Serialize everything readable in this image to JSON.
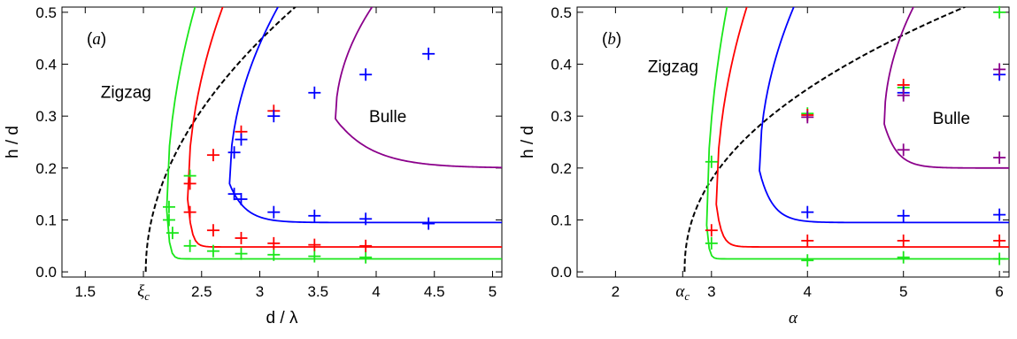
{
  "chart_data": [
    {
      "type": "line",
      "panel_label": "(a)",
      "xlabel": "d / λ",
      "ylabel": "h / d",
      "xlim": [
        1.3,
        5.08
      ],
      "ylim": [
        -0.01,
        0.51
      ],
      "xticks": [
        {
          "value": 1.5,
          "label": "1.5"
        },
        {
          "value": 2.0,
          "label": "ξc",
          "special": true
        },
        {
          "value": 2.5,
          "label": "2.5"
        },
        {
          "value": 3.0,
          "label": "3"
        },
        {
          "value": 3.5,
          "label": "3.5"
        },
        {
          "value": 4.0,
          "label": "4"
        },
        {
          "value": 4.5,
          "label": "4.5"
        },
        {
          "value": 5.0,
          "label": "5"
        }
      ],
      "yticks": [
        0.0,
        0.1,
        0.2,
        0.3,
        0.4,
        0.5
      ],
      "ytick_labels": [
        "0.0",
        "0.1",
        "0.2",
        "0.3",
        "0.4",
        "0.5"
      ],
      "annotations": [
        {
          "text": "Zigzag",
          "x": 1.85,
          "y": 0.335
        },
        {
          "text": "Bulle",
          "x": 4.1,
          "y": 0.288
        }
      ],
      "series": [
        {
          "color": "#000000",
          "dashed": true,
          "style": "boundary",
          "x0": 2.02,
          "A": 0.45,
          "n": 0.5,
          "xmax": 5.08
        },
        {
          "color": "#19e619",
          "style": "loop",
          "x0": 2.2,
          "yc": 0.12,
          "outer_k": 0.4,
          "inner_h": 0.025,
          "inner_k": 0.02,
          "xmax": 5.08
        },
        {
          "color": "#ff0000",
          "style": "loop",
          "x0": 2.38,
          "yc": 0.14,
          "outer_k": 0.55,
          "inner_h": 0.048,
          "inner_k": 0.03,
          "xmax": 5.08
        },
        {
          "color": "#0000ff",
          "style": "loop",
          "x0": 2.74,
          "yc": 0.17,
          "outer_k": 0.9,
          "inner_h": 0.095,
          "inner_k": 0.12,
          "xmax": 5.08
        },
        {
          "color": "#8b008b",
          "style": "loop",
          "x0": 3.65,
          "yc": 0.295,
          "outer_k": 1.7,
          "inner_h": 0.2,
          "inner_k": 0.28,
          "xmax": 5.08
        },
        {
          "color": "#19e619",
          "style": "points",
          "points": [
            [
              2.22,
              0.1
            ],
            [
              2.22,
              0.125
            ],
            [
              2.25,
              0.075
            ],
            [
              2.4,
              0.05
            ],
            [
              2.4,
              0.185
            ],
            [
              2.6,
              0.04
            ],
            [
              2.84,
              0.035
            ],
            [
              3.12,
              0.033
            ],
            [
              3.47,
              0.03
            ],
            [
              3.91,
              0.028
            ]
          ]
        },
        {
          "color": "#ff0000",
          "style": "points",
          "points": [
            [
              2.4,
              0.17
            ],
            [
              2.4,
              0.115
            ],
            [
              2.6,
              0.08
            ],
            [
              2.6,
              0.225
            ],
            [
              2.84,
              0.065
            ],
            [
              2.84,
              0.27
            ],
            [
              3.12,
              0.055
            ],
            [
              3.12,
              0.31
            ],
            [
              3.47,
              0.052
            ],
            [
              3.91,
              0.05
            ]
          ]
        },
        {
          "color": "#0000ff",
          "style": "points",
          "points": [
            [
              2.78,
              0.15
            ],
            [
              2.78,
              0.23
            ],
            [
              2.84,
              0.14
            ],
            [
              2.84,
              0.255
            ],
            [
              3.12,
              0.115
            ],
            [
              3.12,
              0.3
            ],
            [
              3.47,
              0.108
            ],
            [
              3.47,
              0.345
            ],
            [
              3.91,
              0.102
            ],
            [
              3.91,
              0.38
            ],
            [
              4.45,
              0.093
            ],
            [
              4.45,
              0.42
            ]
          ]
        }
      ]
    },
    {
      "type": "line",
      "panel_label": "(b)",
      "xlabel": "α",
      "ylabel": "h / d",
      "xlim": [
        1.6,
        6.1
      ],
      "ylim": [
        -0.01,
        0.51
      ],
      "xticks": [
        {
          "value": 2,
          "label": "2"
        },
        {
          "value": 2.7,
          "label": "αc",
          "special": true
        },
        {
          "value": 3,
          "label": "3"
        },
        {
          "value": 4,
          "label": "4"
        },
        {
          "value": 5,
          "label": "5"
        },
        {
          "value": 6,
          "label": "6"
        }
      ],
      "yticks": [
        0.0,
        0.1,
        0.2,
        0.3,
        0.4,
        0.5
      ],
      "ytick_labels": [
        "0.0",
        "0.1",
        "0.2",
        "0.3",
        "0.4",
        "0.5"
      ],
      "annotations": [
        {
          "text": "Zigzag",
          "x": 2.6,
          "y": 0.385
        },
        {
          "text": "Bulle",
          "x": 5.5,
          "y": 0.285
        }
      ],
      "series": [
        {
          "color": "#000000",
          "dashed": true,
          "style": "boundary",
          "x0": 2.72,
          "A": 0.315,
          "n": 0.45,
          "xmax": 6.1
        },
        {
          "color": "#19e619",
          "style": "loop",
          "x0": 2.95,
          "yc": 0.09,
          "outer_k": 0.3,
          "inner_h": 0.025,
          "inner_k": 0.02,
          "xmax": 6.1
        },
        {
          "color": "#ff0000",
          "style": "loop",
          "x0": 3.05,
          "yc": 0.13,
          "outer_k": 0.55,
          "inner_h": 0.048,
          "inner_k": 0.05,
          "xmax": 6.1
        },
        {
          "color": "#0000ff",
          "style": "loop",
          "x0": 3.5,
          "yc": 0.195,
          "outer_k": 0.9,
          "inner_h": 0.095,
          "inner_k": 0.12,
          "xmax": 6.1
        },
        {
          "color": "#8b008b",
          "style": "loop",
          "x0": 4.8,
          "yc": 0.285,
          "outer_k": 1.5,
          "inner_h": 0.2,
          "inner_k": 0.12,
          "xmax": 6.1
        },
        {
          "color": "#19e619",
          "style": "points",
          "points": [
            [
              3,
              0.212
            ],
            [
              3,
              0.055
            ],
            [
              4,
              0.305
            ],
            [
              4,
              0.022
            ],
            [
              5,
              0.355
            ],
            [
              5,
              0.028
            ],
            [
              6,
              0.5
            ],
            [
              6,
              0.025
            ]
          ]
        },
        {
          "color": "#ff0000",
          "style": "points",
          "points": [
            [
              3,
              0.08
            ],
            [
              4,
              0.302
            ],
            [
              4,
              0.06
            ],
            [
              5,
              0.36
            ],
            [
              5,
              0.06
            ],
            [
              6,
              0.06
            ]
          ]
        },
        {
          "color": "#0000ff",
          "style": "points",
          "points": [
            [
              4,
              0.115
            ],
            [
              5,
              0.345
            ],
            [
              5,
              0.108
            ],
            [
              6,
              0.38
            ],
            [
              6,
              0.11
            ]
          ]
        },
        {
          "color": "#8b008b",
          "style": "points",
          "points": [
            [
              4,
              0.298
            ],
            [
              5,
              0.34
            ],
            [
              5,
              0.235
            ],
            [
              6,
              0.39
            ],
            [
              6,
              0.22
            ]
          ]
        }
      ]
    }
  ]
}
